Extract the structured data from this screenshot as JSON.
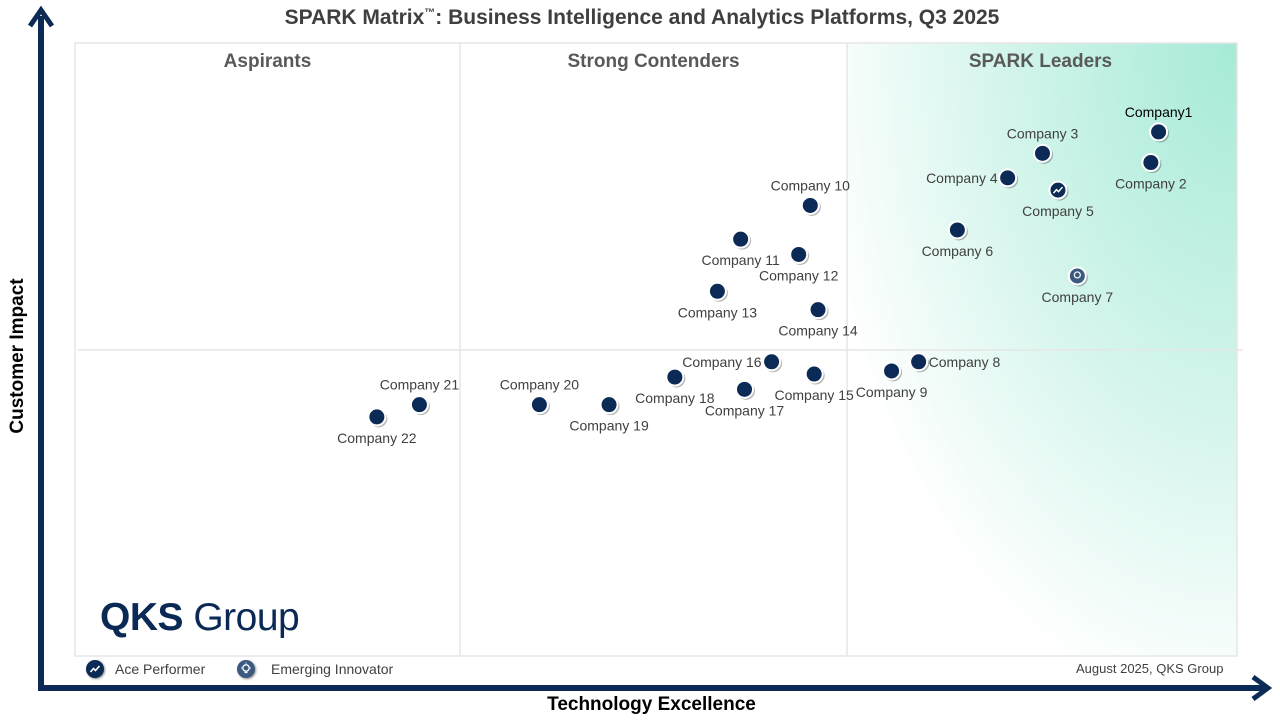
{
  "title_main": "SPARK Matrix",
  "title_tm": "™",
  "title_rest": ": Business Intelligence and Analytics Platforms, Q3 2025",
  "logo": {
    "part1": "QKS",
    "part2": " Group"
  },
  "legend": {
    "ace": "Ace Performer",
    "emerging": "Emerging Innovator"
  },
  "date_note": "August 2025, QKS Group",
  "colors": {
    "dot": "#0b2a55",
    "axis": "#0b2a55",
    "leader_gradient": "#a6ead7"
  },
  "chart_data": {
    "type": "scatter",
    "title": "SPARK Matrix™: Business Intelligence and Analytics Platforms, Q3 2025",
    "xlabel": "Technology Excellence",
    "ylabel": "Customer Impact",
    "xlim": [
      0,
      3
    ],
    "ylim": [
      0,
      2
    ],
    "grid": false,
    "quadrant_labels": [
      "Aspirants",
      "Strong Contenders",
      "SPARK Leaders"
    ],
    "points": [
      {
        "name": "Company1",
        "x": 2.8,
        "y": 1.71,
        "label_pos": "above",
        "marker": "normal"
      },
      {
        "name": "Company 2",
        "x": 2.78,
        "y": 1.61,
        "label_pos": "below",
        "marker": "normal"
      },
      {
        "name": "Company 3",
        "x": 2.5,
        "y": 1.64,
        "label_pos": "above",
        "marker": "normal"
      },
      {
        "name": "Company 4",
        "x": 2.41,
        "y": 1.56,
        "label_pos": "left",
        "marker": "normal"
      },
      {
        "name": "Company 5",
        "x": 2.54,
        "y": 1.52,
        "label_pos": "below",
        "marker": "ace"
      },
      {
        "name": "Company 6",
        "x": 2.28,
        "y": 1.39,
        "label_pos": "below",
        "marker": "normal"
      },
      {
        "name": "Company 7",
        "x": 2.59,
        "y": 1.24,
        "label_pos": "below",
        "marker": "emerging"
      },
      {
        "name": "Company 8",
        "x": 2.18,
        "y": 0.96,
        "label_pos": "right",
        "marker": "normal"
      },
      {
        "name": "Company 9",
        "x": 2.11,
        "y": 0.93,
        "label_pos": "below",
        "marker": "normal"
      },
      {
        "name": "Company 10",
        "x": 1.9,
        "y": 1.47,
        "label_pos": "above",
        "marker": "normal"
      },
      {
        "name": "Company 11",
        "x": 1.72,
        "y": 1.36,
        "label_pos": "below",
        "marker": "normal"
      },
      {
        "name": "Company 12",
        "x": 1.87,
        "y": 1.31,
        "label_pos": "below",
        "marker": "normal"
      },
      {
        "name": "Company 13",
        "x": 1.66,
        "y": 1.19,
        "label_pos": "below",
        "marker": "normal"
      },
      {
        "name": "Company 14",
        "x": 1.92,
        "y": 1.13,
        "label_pos": "below",
        "marker": "normal"
      },
      {
        "name": "Company 15",
        "x": 1.91,
        "y": 0.92,
        "label_pos": "below",
        "marker": "normal"
      },
      {
        "name": "Company 16",
        "x": 1.8,
        "y": 0.96,
        "label_pos": "left",
        "marker": "normal"
      },
      {
        "name": "Company 17",
        "x": 1.73,
        "y": 0.87,
        "label_pos": "below",
        "marker": "normal"
      },
      {
        "name": "Company 18",
        "x": 1.55,
        "y": 0.91,
        "label_pos": "below",
        "marker": "normal"
      },
      {
        "name": "Company 19",
        "x": 1.38,
        "y": 0.82,
        "label_pos": "below",
        "marker": "normal"
      },
      {
        "name": "Company 20",
        "x": 1.2,
        "y": 0.82,
        "label_pos": "above",
        "marker": "normal"
      },
      {
        "name": "Company 21",
        "x": 0.89,
        "y": 0.82,
        "label_pos": "above",
        "marker": "normal"
      },
      {
        "name": "Company 22",
        "x": 0.78,
        "y": 0.78,
        "label_pos": "below",
        "marker": "normal"
      }
    ]
  }
}
